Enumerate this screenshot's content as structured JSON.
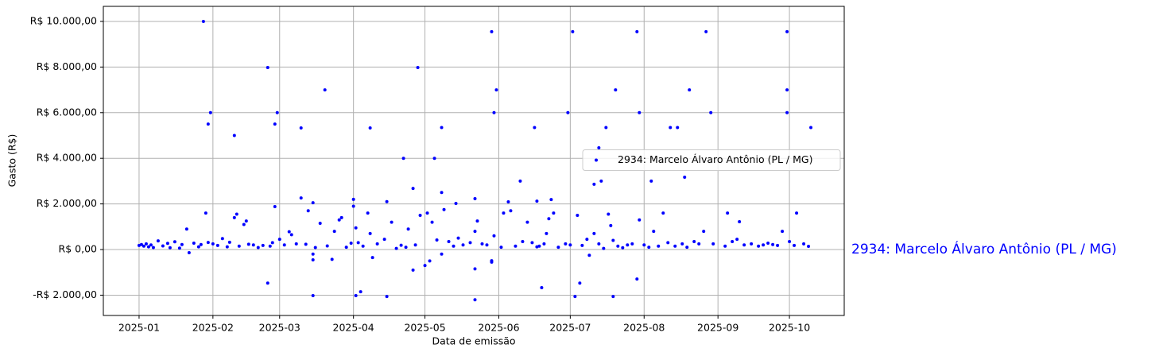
{
  "chart_data": {
    "type": "scatter",
    "xlabel": "Data de emissão",
    "ylabel": "Gasto (R$)",
    "annotation": "2934: Marcelo Álvaro Antônio (PL / MG)",
    "legend": "center right",
    "grid": true,
    "xlim": [
      -15,
      296
    ],
    "ylim": [
      -2890,
      10660
    ],
    "xticks": [
      {
        "value": 0,
        "label": "2025-01"
      },
      {
        "value": 31,
        "label": "2025-02"
      },
      {
        "value": 59,
        "label": "2025-03"
      },
      {
        "value": 90,
        "label": "2025-04"
      },
      {
        "value": 120,
        "label": "2025-05"
      },
      {
        "value": 151,
        "label": "2025-06"
      },
      {
        "value": 181,
        "label": "2025-07"
      },
      {
        "value": 212,
        "label": "2025-08"
      },
      {
        "value": 243,
        "label": "2025-09"
      },
      {
        "value": 273,
        "label": "2025-10"
      }
    ],
    "yticks": [
      {
        "value": -2000,
        "label": "-R$ 2.000,00"
      },
      {
        "value": 0,
        "label": "R$ 0,00"
      },
      {
        "value": 2000,
        "label": "R$ 2.000,00"
      },
      {
        "value": 4000,
        "label": "R$ 4.000,00"
      },
      {
        "value": 6000,
        "label": "R$ 6.000,00"
      },
      {
        "value": 8000,
        "label": "R$ 8.000,00"
      },
      {
        "value": 10000,
        "label": "R$ 10.000,00"
      }
    ],
    "x": [
      27,
      54,
      29,
      30,
      40,
      28,
      57,
      58,
      54,
      57,
      68,
      68,
      78,
      73,
      73,
      73,
      91,
      93,
      90,
      97,
      104,
      104,
      111,
      115,
      117,
      115,
      124,
      127,
      127,
      133,
      141,
      141,
      141,
      148,
      149,
      150,
      148,
      155,
      160,
      166,
      169,
      167,
      173,
      180,
      182,
      183,
      185,
      191,
      193,
      194,
      196,
      199,
      200,
      209,
      209,
      210,
      215,
      223,
      226,
      229,
      231,
      238,
      240,
      247,
      252,
      272,
      272,
      272,
      276,
      282,
      281,
      0,
      1,
      2,
      3,
      4,
      5,
      6,
      8,
      10,
      12,
      13,
      15,
      17,
      18,
      20,
      21,
      23,
      25,
      26,
      29,
      31,
      33,
      35,
      37,
      38,
      40,
      41,
      42,
      44,
      45,
      46,
      48,
      50,
      52,
      55,
      56,
      59,
      61,
      63,
      64,
      66,
      70,
      71,
      73,
      74,
      76,
      79,
      81,
      82,
      84,
      85,
      87,
      89,
      90,
      91,
      92,
      94,
      96,
      97,
      98,
      100,
      103,
      106,
      108,
      110,
      112,
      113,
      116,
      118,
      120,
      121,
      122,
      123,
      125,
      127,
      128,
      130,
      132,
      134,
      136,
      139,
      141,
      142,
      144,
      146,
      148,
      149,
      152,
      153,
      156,
      158,
      161,
      163,
      165,
      167,
      168,
      170,
      171,
      172,
      174,
      176,
      179,
      181,
      184,
      186,
      188,
      189,
      191,
      193,
      195,
      197,
      198,
      199,
      201,
      203,
      205,
      207,
      210,
      212,
      214,
      216,
      218,
      220,
      222,
      225,
      228,
      230,
      233,
      235,
      237,
      241,
      246,
      249,
      251,
      254,
      257,
      260,
      262,
      264,
      266,
      268,
      270,
      273,
      275,
      279
    ],
    "series": [
      {
        "name": "2934: Marcelo Álvaro Antônio (PL / MG)",
        "color": "#0000ff",
        "values": [
          10000,
          7980,
          5500,
          6000,
          5000,
          1600,
          5500,
          6000,
          -1470,
          1880,
          5330,
          2260,
          7000,
          -2020,
          -450,
          2050,
          -2020,
          -1850,
          2200,
          5330,
          -2060,
          2100,
          4000,
          2680,
          7980,
          -900,
          4000,
          5350,
          2500,
          2020,
          2230,
          -2200,
          -850,
          9550,
          6000,
          7000,
          -490,
          2090,
          3000,
          5350,
          -1670,
          2120,
          2190,
          6000,
          9550,
          -2060,
          -1470,
          2860,
          4460,
          3000,
          5350,
          -2060,
          7000,
          -1290,
          9550,
          6000,
          3000,
          5350,
          5350,
          3170,
          7000,
          9550,
          6000,
          1600,
          1220,
          9550,
          7000,
          6000,
          1600,
          5350,
          140,
          180,
          220,
          150,
          250,
          120,
          200,
          90,
          380,
          160,
          270,
          80,
          340,
          60,
          220,
          900,
          -140,
          280,
          120,
          220,
          310,
          250,
          180,
          480,
          120,
          320,
          1400,
          1550,
          150,
          1100,
          1250,
          230,
          200,
          90,
          180,
          150,
          300,
          450,
          200,
          780,
          650,
          250,
          230,
          1700,
          -200,
          90,
          1150,
          160,
          -430,
          800,
          1300,
          1400,
          100,
          280,
          1900,
          950,
          300,
          150,
          1600,
          700,
          -350,
          250,
          450,
          1200,
          50,
          190,
          100,
          900,
          200,
          1500,
          -700,
          1600,
          -500,
          1200,
          420,
          -200,
          1750,
          350,
          150,
          500,
          200,
          300,
          800,
          1250,
          250,
          200,
          -550,
          600,
          100,
          1600,
          1700,
          150,
          350,
          1200,
          300,
          120,
          150,
          250,
          700,
          1350,
          1600,
          100,
          250,
          200,
          1500,
          180,
          450,
          -250,
          700,
          250,
          50,
          1550,
          1050,
          400,
          150,
          80,
          200,
          250,
          1300,
          200,
          100,
          800,
          150,
          1600,
          300,
          150,
          250,
          100,
          350,
          250,
          800,
          250,
          150,
          350,
          450,
          200,
          250,
          150,
          200,
          280,
          220,
          180,
          800,
          350,
          180,
          250
        ]
      }
    ]
  }
}
